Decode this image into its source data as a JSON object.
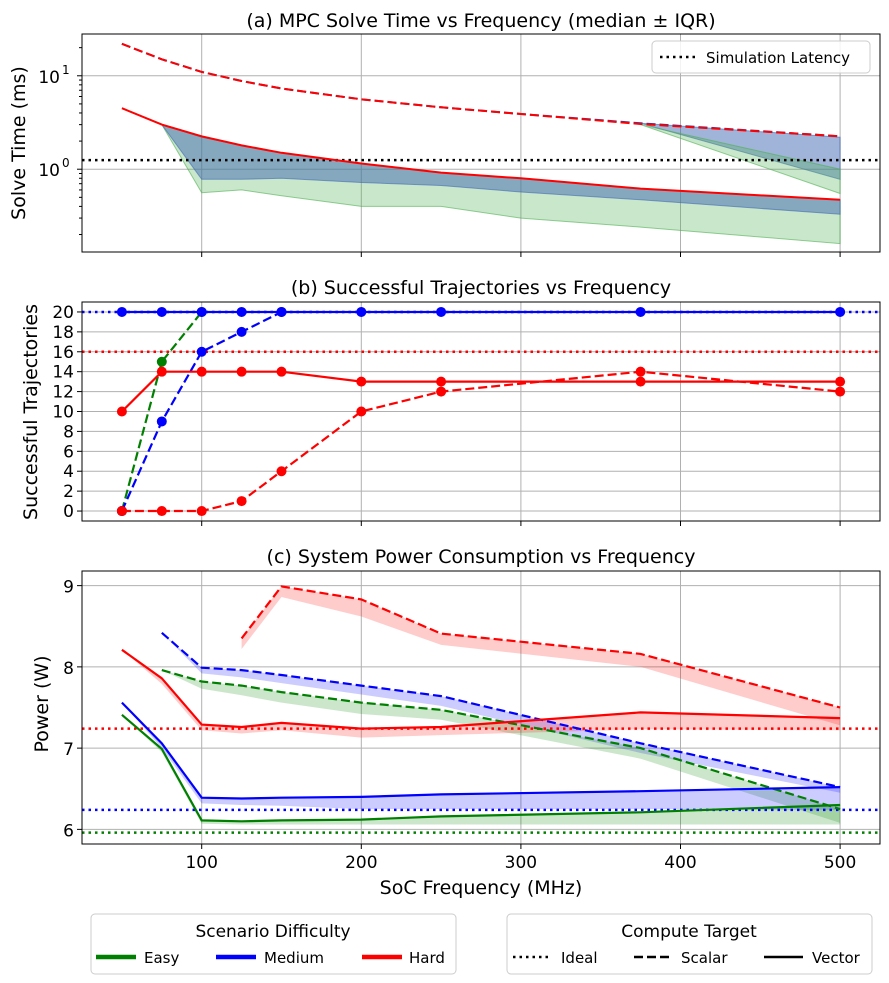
{
  "colors": {
    "easy": "#008000",
    "medium": "#0000ff",
    "hard": "#ff0000",
    "latency": "#000000",
    "grid": "#b0b0b0"
  },
  "chart_data": [
    {
      "id": "solve",
      "type": "line",
      "title": "(a) MPC Solve Time vs Frequency (median ± IQR)",
      "ylabel": "Solve Time (ms)",
      "yscale": "log",
      "ylim": [
        0.13,
        28
      ],
      "yticks": [
        {
          "v": 1,
          "label": "10",
          "sup": "0"
        },
        {
          "v": 10,
          "label": "10",
          "sup": "1"
        }
      ],
      "latency": {
        "value": 1.25,
        "label": "Simulation Latency"
      },
      "series": [
        {
          "name": "Scalar",
          "style": "dashed",
          "color": "#1f3fae",
          "x": [
            50,
            75,
            100,
            125,
            150,
            200,
            250,
            300,
            375,
            500
          ],
          "values": [
            22,
            15,
            11,
            8.8,
            7.3,
            5.6,
            4.6,
            3.9,
            3.1,
            2.25
          ],
          "bands": [
            {
              "x": [
                375,
                500
              ],
              "low": [
                3.1,
                0.78
              ],
              "high": [
                3.1,
                2.2
              ],
              "color": "#4169b4",
              "alpha": 0.5
            }
          ]
        },
        {
          "name": "Scalar (hard)",
          "style": "dashed",
          "color": "#ff0000",
          "x": [
            50,
            75,
            100,
            125,
            150,
            200,
            250,
            300,
            375,
            500
          ],
          "values": [
            22,
            15,
            11,
            8.8,
            7.3,
            5.6,
            4.6,
            3.9,
            3.05,
            2.25
          ],
          "bands": [
            {
              "x": [
                375,
                500
              ],
              "low": [
                3.0,
                0.55
              ],
              "high": [
                3.0,
                1.0
              ],
              "color": "#4caf50",
              "alpha": 0.3
            }
          ]
        },
        {
          "name": "Vector",
          "style": "solid",
          "color": "#ff0000",
          "x": [
            50,
            75,
            100,
            125,
            150,
            200,
            250,
            300,
            375,
            500
          ],
          "values": [
            4.5,
            3.0,
            2.25,
            1.8,
            1.5,
            1.15,
            0.92,
            0.8,
            0.62,
            0.47
          ],
          "bands": [
            {
              "x": [
                75,
                100,
                125,
                150,
                200,
                250,
                300,
                375,
                500
              ],
              "low": [
                3.0,
                0.56,
                0.6,
                0.52,
                0.4,
                0.4,
                0.3,
                0.24,
                0.16
              ],
              "high": [
                3.0,
                2.2,
                1.8,
                1.5,
                1.15,
                0.92,
                0.8,
                0.62,
                0.47
              ],
              "color": "#4caf50",
              "alpha": 0.3
            },
            {
              "x": [
                75,
                100,
                125,
                150,
                200,
                250,
                300,
                375,
                500
              ],
              "low": [
                3.0,
                0.78,
                0.78,
                0.8,
                0.72,
                0.67,
                0.57,
                0.47,
                0.33
              ],
              "high": [
                3.0,
                2.2,
                1.8,
                1.5,
                1.15,
                0.92,
                0.8,
                0.62,
                0.47
              ],
              "color": "#4169b4",
              "alpha": 0.5
            }
          ]
        }
      ]
    },
    {
      "id": "success",
      "type": "line",
      "title": "(b) Successful Trajectories vs Frequency",
      "ylabel": "Successful Trajectories",
      "ylim": [
        -1,
        21
      ],
      "yticks": [
        0,
        2,
        4,
        6,
        8,
        10,
        12,
        14,
        16,
        18,
        20
      ],
      "ideal": [
        {
          "value": 20,
          "color": "#0000ff"
        },
        {
          "value": 16,
          "color": "#ff0000"
        }
      ],
      "series": [
        {
          "name": "Easy Scalar",
          "style": "dashed",
          "color": "#008000",
          "x": [
            50,
            75,
            100
          ],
          "values": [
            0,
            15,
            20
          ]
        },
        {
          "name": "Medium Scalar",
          "style": "dashed",
          "color": "#0000ff",
          "x": [
            50,
            75,
            100,
            125,
            150
          ],
          "values": [
            0,
            9,
            16,
            18,
            20
          ]
        },
        {
          "name": "Hard Scalar",
          "style": "dashed",
          "color": "#ff0000",
          "x": [
            50,
            75,
            100,
            125,
            150,
            200,
            250,
            375,
            500
          ],
          "values": [
            0,
            0,
            0,
            1,
            4,
            10,
            12,
            14,
            12
          ]
        },
        {
          "name": "Hard Vector",
          "style": "solid",
          "color": "#ff0000",
          "x": [
            50,
            75,
            100,
            125,
            150,
            200,
            250,
            375,
            500
          ],
          "values": [
            10,
            14,
            14,
            14,
            14,
            13,
            13,
            13,
            13
          ]
        },
        {
          "name": "Medium Vector",
          "style": "solid",
          "color": "#0000ff",
          "x": [
            50,
            75,
            100,
            125,
            150,
            200,
            250,
            375,
            500
          ],
          "values": [
            20,
            20,
            20,
            20,
            20,
            20,
            20,
            20,
            20
          ]
        }
      ]
    },
    {
      "id": "power",
      "type": "line",
      "title": "(c) System Power Consumption vs Frequency",
      "ylabel": "Power (W)",
      "xlabel": "SoC Frequency (MHz)",
      "ylim": [
        5.82,
        9.18
      ],
      "xlim": [
        25,
        525
      ],
      "xticks": [
        100,
        200,
        300,
        400,
        500
      ],
      "yticks": [
        6,
        7,
        8,
        9
      ],
      "ideal": [
        {
          "value": 7.24,
          "color": "#ff0000"
        },
        {
          "value": 6.24,
          "color": "#0000ff"
        },
        {
          "value": 5.96,
          "color": "#008000"
        }
      ],
      "series": [
        {
          "name": "Hard Scalar",
          "style": "dashed",
          "color": "#ff0000",
          "x": [
            125,
            150,
            200,
            250,
            375,
            500
          ],
          "values": [
            8.35,
            8.99,
            8.83,
            8.41,
            8.16,
            7.5
          ],
          "bandLow": [
            8.22,
            8.86,
            8.62,
            8.27,
            8.0,
            7.28
          ]
        },
        {
          "name": "Medium Scalar",
          "style": "dashed",
          "color": "#0000ff",
          "x": [
            75,
            100,
            125,
            150,
            200,
            250,
            375,
            500
          ],
          "values": [
            8.42,
            7.99,
            7.96,
            7.9,
            7.77,
            7.64,
            7.06,
            6.52
          ],
          "bandLow": [
            8.42,
            7.92,
            7.87,
            7.8,
            7.66,
            7.52,
            6.94,
            6.45
          ]
        },
        {
          "name": "Easy Scalar",
          "style": "dashed",
          "color": "#008000",
          "x": [
            75,
            100,
            125,
            150,
            200,
            250,
            375,
            500
          ],
          "values": [
            7.96,
            7.82,
            7.77,
            7.69,
            7.56,
            7.47,
            7.0,
            6.25
          ],
          "bandLow": [
            7.96,
            7.73,
            7.65,
            7.56,
            7.42,
            7.35,
            6.87,
            6.08
          ]
        },
        {
          "name": "Hard Vector",
          "style": "solid",
          "color": "#ff0000",
          "x": [
            50,
            75,
            100,
            125,
            150,
            200,
            250,
            375,
            500
          ],
          "values": [
            8.21,
            7.86,
            7.29,
            7.26,
            7.31,
            7.24,
            7.26,
            7.44,
            7.37
          ],
          "bandLow": [
            8.21,
            7.79,
            7.22,
            7.18,
            7.22,
            7.13,
            7.16,
            7.23,
            7.22
          ]
        },
        {
          "name": "Medium Vector",
          "style": "solid",
          "color": "#0000ff",
          "x": [
            50,
            75,
            100,
            125,
            150,
            200,
            250,
            375,
            500
          ],
          "values": [
            7.56,
            7.06,
            6.39,
            6.38,
            6.39,
            6.4,
            6.43,
            6.47,
            6.52
          ],
          "bandLow": [
            7.56,
            7.0,
            6.32,
            6.3,
            6.29,
            6.25,
            6.25,
            6.25,
            6.24
          ]
        },
        {
          "name": "Easy Vector",
          "style": "solid",
          "color": "#008000",
          "x": [
            50,
            75,
            100,
            125,
            150,
            200,
            250,
            375,
            500
          ],
          "values": [
            7.41,
            6.99,
            6.11,
            6.1,
            6.11,
            6.12,
            6.16,
            6.21,
            6.3
          ],
          "bandLow": [
            7.41,
            6.95,
            6.07,
            6.06,
            6.06,
            6.06,
            6.06,
            6.06,
            6.06
          ]
        }
      ]
    }
  ],
  "legend_difficulty": {
    "title": "Scenario Difficulty",
    "items": [
      {
        "label": "Easy",
        "color": "#008000"
      },
      {
        "label": "Medium",
        "color": "#0000ff"
      },
      {
        "label": "Hard",
        "color": "#ff0000"
      }
    ]
  },
  "legend_target": {
    "title": "Compute Target",
    "items": [
      {
        "label": "Ideal",
        "style": "dotted"
      },
      {
        "label": "Scalar",
        "style": "dashed"
      },
      {
        "label": "Vector",
        "style": "solid"
      }
    ]
  }
}
